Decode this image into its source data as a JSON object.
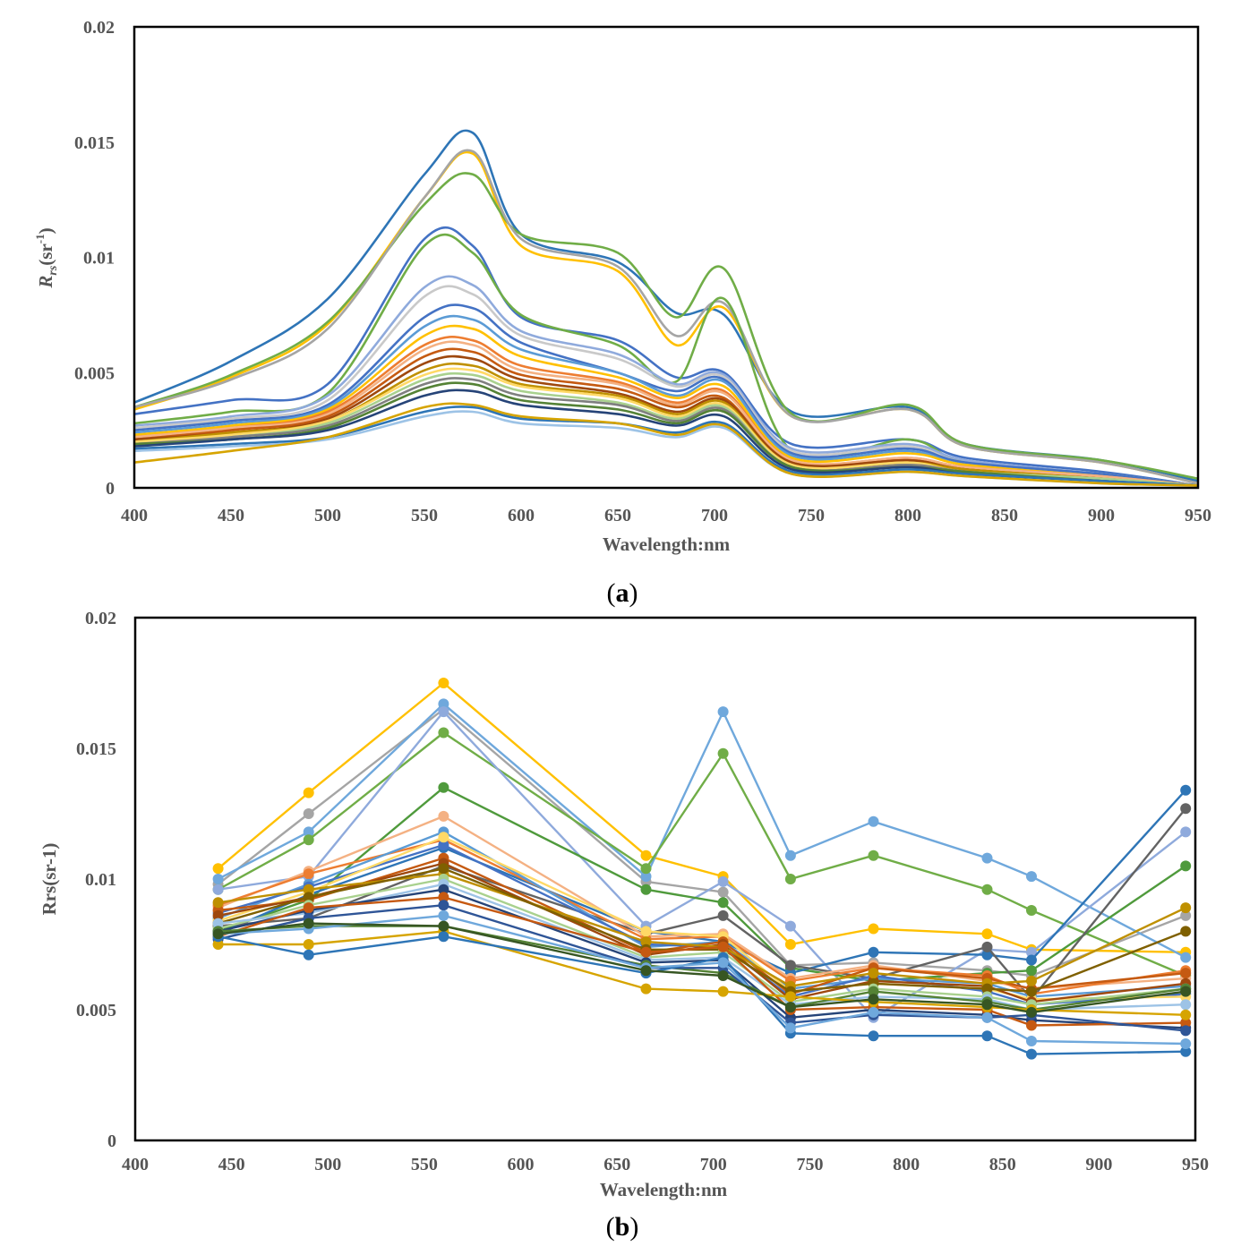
{
  "captions": {
    "a": "a",
    "b": "b"
  },
  "chart_data": [
    {
      "type": "line",
      "xlabel": "Wavelength:nm",
      "ylabel": "Rrs(sr-1)",
      "xlim": [
        400,
        950
      ],
      "ylim": [
        0,
        0.02
      ],
      "xticks": [
        400,
        450,
        500,
        550,
        600,
        650,
        700,
        750,
        800,
        850,
        900,
        950
      ],
      "yticks": [
        "0",
        "0.005",
        "0.01",
        "0.015",
        "0.02"
      ],
      "grid": false,
      "legend": "none",
      "x": [
        400,
        450,
        500,
        550,
        575,
        600,
        650,
        680,
        705,
        740,
        800,
        830,
        900,
        950
      ],
      "series": [
        {
          "color": "#2e75b6",
          "values": [
            0.0037,
            0.0055,
            0.0082,
            0.0136,
            0.0154,
            0.011,
            0.0098,
            0.0076,
            0.0075,
            0.0033,
            0.0035,
            0.0019,
            0.0012,
            0.0003
          ]
        },
        {
          "color": "#ffc000",
          "values": [
            0.0034,
            0.0048,
            0.0071,
            0.0126,
            0.0145,
            0.0105,
            0.0094,
            0.0062,
            0.0078,
            0.0031,
            0.0034,
            0.0018,
            0.0011,
            0.0002
          ]
        },
        {
          "color": "#70ad47",
          "values": [
            0.0035,
            0.0049,
            0.0072,
            0.0123,
            0.0136,
            0.011,
            0.0102,
            0.0074,
            0.0095,
            0.0032,
            0.0036,
            0.0019,
            0.0012,
            0.0004
          ]
        },
        {
          "color": "#a5a5a5",
          "values": [
            0.0035,
            0.0047,
            0.0069,
            0.0126,
            0.0146,
            0.0108,
            0.0096,
            0.0066,
            0.008,
            0.0031,
            0.0034,
            0.0018,
            0.0011,
            0.0002
          ]
        },
        {
          "color": "#4472c4",
          "values": [
            0.0032,
            0.0038,
            0.0045,
            0.0108,
            0.0105,
            0.0074,
            0.0064,
            0.0048,
            0.005,
            0.0019,
            0.0021,
            0.0013,
            0.0007,
            0.0001
          ]
        },
        {
          "color": "#70ad47",
          "values": [
            0.0028,
            0.0033,
            0.0041,
            0.0105,
            0.0102,
            0.0075,
            0.0062,
            0.0046,
            0.0082,
            0.0016,
            0.0021,
            0.0011,
            0.0006,
            0.0001
          ]
        },
        {
          "color": "#8faadc",
          "values": [
            0.0027,
            0.0031,
            0.004,
            0.0087,
            0.0088,
            0.0068,
            0.0058,
            0.0045,
            0.0049,
            0.0017,
            0.0019,
            0.0012,
            0.0006,
            0.0001
          ]
        },
        {
          "color": "#c9c9c9",
          "values": [
            0.0026,
            0.003,
            0.0038,
            0.0083,
            0.0084,
            0.0066,
            0.0056,
            0.0044,
            0.0048,
            0.0016,
            0.0018,
            0.0011,
            0.0006,
            0.0001
          ]
        },
        {
          "color": "#4472c4",
          "values": [
            0.0025,
            0.0029,
            0.0036,
            0.0074,
            0.0078,
            0.0063,
            0.005,
            0.0042,
            0.0047,
            0.0015,
            0.0017,
            0.0011,
            0.0006,
            0.0001
          ]
        },
        {
          "color": "#5b9bd5",
          "values": [
            0.0024,
            0.0028,
            0.0035,
            0.007,
            0.0073,
            0.006,
            0.005,
            0.004,
            0.0046,
            0.0014,
            0.0016,
            0.001,
            0.0005,
            0.0001
          ]
        },
        {
          "color": "#ffc000",
          "values": [
            0.0023,
            0.0027,
            0.0034,
            0.0066,
            0.0069,
            0.0057,
            0.0048,
            0.0039,
            0.0044,
            0.0013,
            0.0015,
            0.001,
            0.0005,
            0.0001
          ]
        },
        {
          "color": "#ed7d31",
          "values": [
            0.0022,
            0.0026,
            0.0033,
            0.0062,
            0.0064,
            0.0053,
            0.0046,
            0.0037,
            0.0042,
            0.0012,
            0.0013,
            0.0009,
            0.0005,
            0.0001
          ]
        },
        {
          "color": "#f4b183",
          "values": [
            0.0022,
            0.0026,
            0.0032,
            0.006,
            0.0062,
            0.0051,
            0.0045,
            0.0036,
            0.0041,
            0.0012,
            0.0013,
            0.0009,
            0.0005,
            0.0001
          ]
        },
        {
          "color": "#c55a11",
          "values": [
            0.0021,
            0.0025,
            0.0031,
            0.0057,
            0.0059,
            0.0049,
            0.0043,
            0.0035,
            0.0039,
            0.0011,
            0.0012,
            0.0008,
            0.0004,
            0.0001
          ]
        },
        {
          "color": "#9e480e",
          "values": [
            0.0021,
            0.0024,
            0.003,
            0.0054,
            0.0056,
            0.0047,
            0.0041,
            0.0033,
            0.0038,
            0.0011,
            0.0012,
            0.0008,
            0.0004,
            0.0001
          ]
        },
        {
          "color": "#bf9000",
          "values": [
            0.002,
            0.0024,
            0.0029,
            0.0051,
            0.0053,
            0.0045,
            0.004,
            0.0032,
            0.0037,
            0.001,
            0.0011,
            0.0008,
            0.0004,
            0.0001
          ]
        },
        {
          "color": "#ffd966",
          "values": [
            0.002,
            0.0023,
            0.0029,
            0.0049,
            0.0051,
            0.0044,
            0.0039,
            0.0031,
            0.0036,
            0.001,
            0.0011,
            0.0007,
            0.0004,
            0.0001
          ]
        },
        {
          "color": "#a9d18e",
          "values": [
            0.0019,
            0.0022,
            0.0028,
            0.0047,
            0.0049,
            0.0042,
            0.0037,
            0.003,
            0.0035,
            0.0009,
            0.001,
            0.0007,
            0.0004,
            0.0001
          ]
        },
        {
          "color": "#7f7f7f",
          "values": [
            0.0019,
            0.0022,
            0.0027,
            0.0045,
            0.0047,
            0.004,
            0.0036,
            0.0029,
            0.0034,
            0.0009,
            0.001,
            0.0007,
            0.0003,
            0.0001
          ]
        },
        {
          "color": "#548235",
          "values": [
            0.0019,
            0.0021,
            0.0026,
            0.0043,
            0.0045,
            0.0038,
            0.0034,
            0.0028,
            0.0033,
            0.0009,
            0.0009,
            0.0007,
            0.0003,
            0.0001
          ]
        },
        {
          "color": "#264478",
          "values": [
            0.0018,
            0.0021,
            0.0025,
            0.004,
            0.0042,
            0.0036,
            0.0032,
            0.0027,
            0.0031,
            0.0008,
            0.0009,
            0.0006,
            0.0003,
            0.0001
          ]
        },
        {
          "color": "#2e75b6",
          "values": [
            0.0017,
            0.0019,
            0.0022,
            0.0033,
            0.0035,
            0.003,
            0.0028,
            0.0024,
            0.0028,
            0.0007,
            0.0008,
            0.0006,
            0.0003,
            0.0001
          ]
        },
        {
          "color": "#9dc3e6",
          "values": [
            0.0016,
            0.0018,
            0.0021,
            0.0031,
            0.0033,
            0.0028,
            0.0026,
            0.0022,
            0.0026,
            0.0006,
            0.0007,
            0.0005,
            0.0002,
            0.0001
          ]
        },
        {
          "color": "#d6a400",
          "values": [
            0.0011,
            0.0016,
            0.0022,
            0.0035,
            0.0036,
            0.0031,
            0.0028,
            0.0023,
            0.0027,
            0.0006,
            0.0007,
            0.0005,
            0.0002,
            0.0001
          ]
        }
      ]
    },
    {
      "type": "line",
      "markers": true,
      "xlabel": "Wavelength:nm",
      "ylabel": "Rrs(sr-1)",
      "xlim": [
        400,
        950
      ],
      "ylim": [
        0,
        0.02
      ],
      "xticks": [
        400,
        450,
        500,
        550,
        600,
        650,
        700,
        750,
        800,
        850,
        900,
        950
      ],
      "yticks": [
        "0",
        "0.005",
        "0.01",
        "0.015",
        "0.02"
      ],
      "grid": false,
      "legend": "none",
      "x": [
        443,
        490,
        560,
        665,
        705,
        740,
        783,
        842,
        865,
        945
      ],
      "series": [
        {
          "color": "#ffc000",
          "values": [
            0.0104,
            0.0133,
            0.0175,
            0.0109,
            0.0101,
            0.0075,
            0.0081,
            0.0079,
            0.0073,
            0.0072
          ]
        },
        {
          "color": "#a5a5a5",
          "values": [
            0.0098,
            0.0125,
            0.0165,
            0.0099,
            0.0095,
            0.0067,
            0.0068,
            0.0065,
            0.0063,
            0.0086
          ]
        },
        {
          "color": "#6fa8dc",
          "values": [
            0.01,
            0.0118,
            0.0167,
            0.0101,
            0.0164,
            0.0109,
            0.0122,
            0.0108,
            0.0101,
            0.007
          ]
        },
        {
          "color": "#70ad47",
          "values": [
            0.0096,
            0.0115,
            0.0156,
            0.0104,
            0.0148,
            0.01,
            0.0109,
            0.0096,
            0.0088,
            0.0063
          ]
        },
        {
          "color": "#8faadc",
          "values": [
            0.0096,
            0.0101,
            0.0164,
            0.0082,
            0.0099,
            0.0082,
            0.0047,
            0.0073,
            0.0072,
            0.0118
          ]
        },
        {
          "color": "#4f9a3c",
          "values": [
            0.008,
            0.0092,
            0.0135,
            0.0096,
            0.0091,
            0.0066,
            0.0061,
            0.0064,
            0.0065,
            0.0105
          ]
        },
        {
          "color": "#2e75b6",
          "values": [
            0.0079,
            0.0094,
            0.0112,
            0.008,
            0.0076,
            0.0064,
            0.0072,
            0.0071,
            0.0069,
            0.0134
          ]
        },
        {
          "color": "#636363",
          "values": [
            0.0082,
            0.0085,
            0.0105,
            0.0079,
            0.0086,
            0.0067,
            0.0062,
            0.0074,
            0.0054,
            0.0127
          ]
        },
        {
          "color": "#f4b183",
          "values": [
            0.0089,
            0.0103,
            0.0124,
            0.0078,
            0.0079,
            0.0062,
            0.0067,
            0.0061,
            0.0058,
            0.0062
          ]
        },
        {
          "color": "#ed7d31",
          "values": [
            0.009,
            0.0102,
            0.0115,
            0.0077,
            0.0078,
            0.0061,
            0.0066,
            0.0063,
            0.0056,
            0.0065
          ]
        },
        {
          "color": "#5b9bd5",
          "values": [
            0.0085,
            0.0098,
            0.0118,
            0.0074,
            0.0076,
            0.0058,
            0.0062,
            0.006,
            0.0055,
            0.0059
          ]
        },
        {
          "color": "#4472c4",
          "values": [
            0.0087,
            0.0097,
            0.0113,
            0.0075,
            0.0074,
            0.0055,
            0.0063,
            0.0057,
            0.0052,
            0.0056
          ]
        },
        {
          "color": "#ffd966",
          "values": [
            0.0084,
            0.0095,
            0.0116,
            0.008,
            0.0078,
            0.0057,
            0.006,
            0.0058,
            0.0054,
            0.0055
          ]
        },
        {
          "color": "#c55a11",
          "values": [
            0.0088,
            0.0092,
            0.0108,
            0.0072,
            0.0076,
            0.0056,
            0.0066,
            0.0062,
            0.0058,
            0.0064
          ]
        },
        {
          "color": "#9e480e",
          "values": [
            0.0086,
            0.0093,
            0.0106,
            0.0071,
            0.0075,
            0.0054,
            0.0061,
            0.0059,
            0.0053,
            0.006
          ]
        },
        {
          "color": "#bf9000",
          "values": [
            0.0091,
            0.0096,
            0.0102,
            0.0076,
            0.0074,
            0.0059,
            0.0064,
            0.006,
            0.0061,
            0.0089
          ]
        },
        {
          "color": "#7f6000",
          "values": [
            0.0083,
            0.0093,
            0.0104,
            0.0073,
            0.0073,
            0.0057,
            0.006,
            0.0058,
            0.0057,
            0.008
          ]
        },
        {
          "color": "#a9d18e",
          "values": [
            0.0081,
            0.009,
            0.01,
            0.007,
            0.0072,
            0.0053,
            0.0058,
            0.0055,
            0.0052,
            0.0058
          ]
        },
        {
          "color": "#9dc3e6",
          "values": [
            0.0083,
            0.0087,
            0.0098,
            0.0069,
            0.007,
            0.0052,
            0.0055,
            0.0054,
            0.005,
            0.0052
          ]
        },
        {
          "color": "#264478",
          "values": [
            0.008,
            0.0088,
            0.0096,
            0.0068,
            0.0069,
            0.0047,
            0.005,
            0.0048,
            0.0046,
            0.0043
          ]
        },
        {
          "color": "#c65911",
          "values": [
            0.0078,
            0.0089,
            0.0093,
            0.0072,
            0.0074,
            0.005,
            0.0051,
            0.005,
            0.0044,
            0.0045
          ]
        },
        {
          "color": "#548235",
          "values": [
            0.008,
            0.0082,
            0.0082,
            0.0067,
            0.0064,
            0.0051,
            0.0057,
            0.0053,
            0.005,
            0.0058
          ]
        },
        {
          "color": "#2f5597",
          "values": [
            0.0077,
            0.0085,
            0.009,
            0.0066,
            0.0066,
            0.0045,
            0.0048,
            0.0047,
            0.0048,
            0.0042
          ]
        },
        {
          "color": "#d6a400",
          "values": [
            0.0075,
            0.0075,
            0.008,
            0.0058,
            0.0057,
            0.0055,
            0.0053,
            0.0051,
            0.005,
            0.0048
          ]
        },
        {
          "color": "#2e75b6",
          "values": [
            0.0078,
            0.0071,
            0.0078,
            0.0064,
            0.007,
            0.0041,
            0.004,
            0.004,
            0.0033,
            0.0034
          ]
        },
        {
          "color": "#6fa8dc",
          "values": [
            0.0079,
            0.0081,
            0.0086,
            0.0066,
            0.0068,
            0.0043,
            0.0049,
            0.0047,
            0.0038,
            0.0037
          ]
        },
        {
          "color": "#375623",
          "values": [
            0.0079,
            0.0083,
            0.0082,
            0.0065,
            0.0063,
            0.0051,
            0.0054,
            0.0052,
            0.0049,
            0.0057
          ]
        }
      ]
    }
  ]
}
